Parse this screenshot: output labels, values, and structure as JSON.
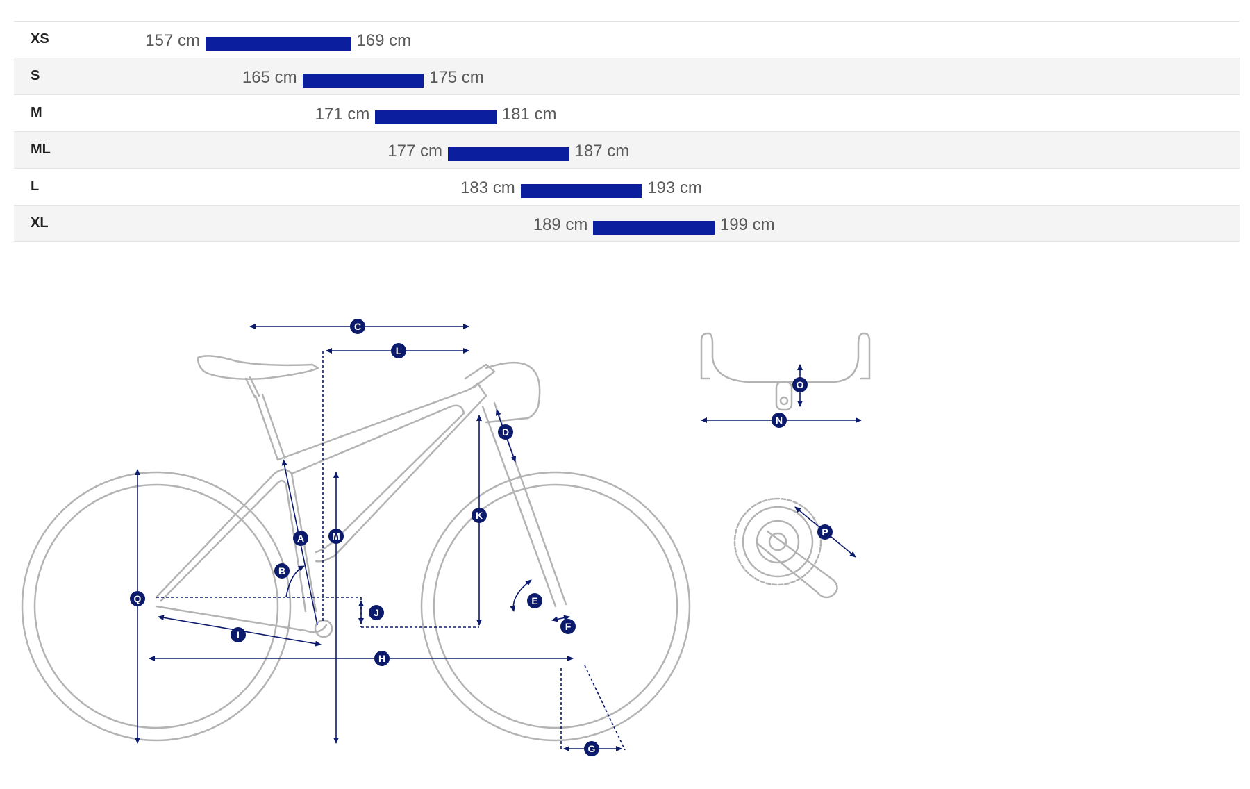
{
  "chart_data": {
    "type": "range-bar",
    "unit": "cm",
    "bar_color": "#0a1e9e",
    "categories": [
      "XS",
      "S",
      "M",
      "ML",
      "L",
      "XL"
    ],
    "ranges": [
      {
        "size": "XS",
        "min": 157,
        "max": 169,
        "min_label": "157 cm",
        "max_label": "169 cm"
      },
      {
        "size": "S",
        "min": 165,
        "max": 175,
        "min_label": "165 cm",
        "max_label": "175 cm"
      },
      {
        "size": "M",
        "min": 171,
        "max": 181,
        "min_label": "171 cm",
        "max_label": "181 cm"
      },
      {
        "size": "ML",
        "min": 177,
        "max": 187,
        "min_label": "177 cm",
        "max_label": "187 cm"
      },
      {
        "size": "L",
        "min": 183,
        "max": 193,
        "min_label": "183 cm",
        "max_label": "193 cm"
      },
      {
        "size": "XL",
        "min": 189,
        "max": 199,
        "min_label": "189 cm",
        "max_label": "199 cm"
      }
    ]
  },
  "geometry": {
    "line_color": "#b3b3b3",
    "marker_color": "#0b1a6b",
    "markers": [
      "A",
      "B",
      "C",
      "D",
      "E",
      "F",
      "G",
      "H",
      "I",
      "J",
      "K",
      "L",
      "M",
      "N",
      "O",
      "P",
      "Q"
    ]
  }
}
